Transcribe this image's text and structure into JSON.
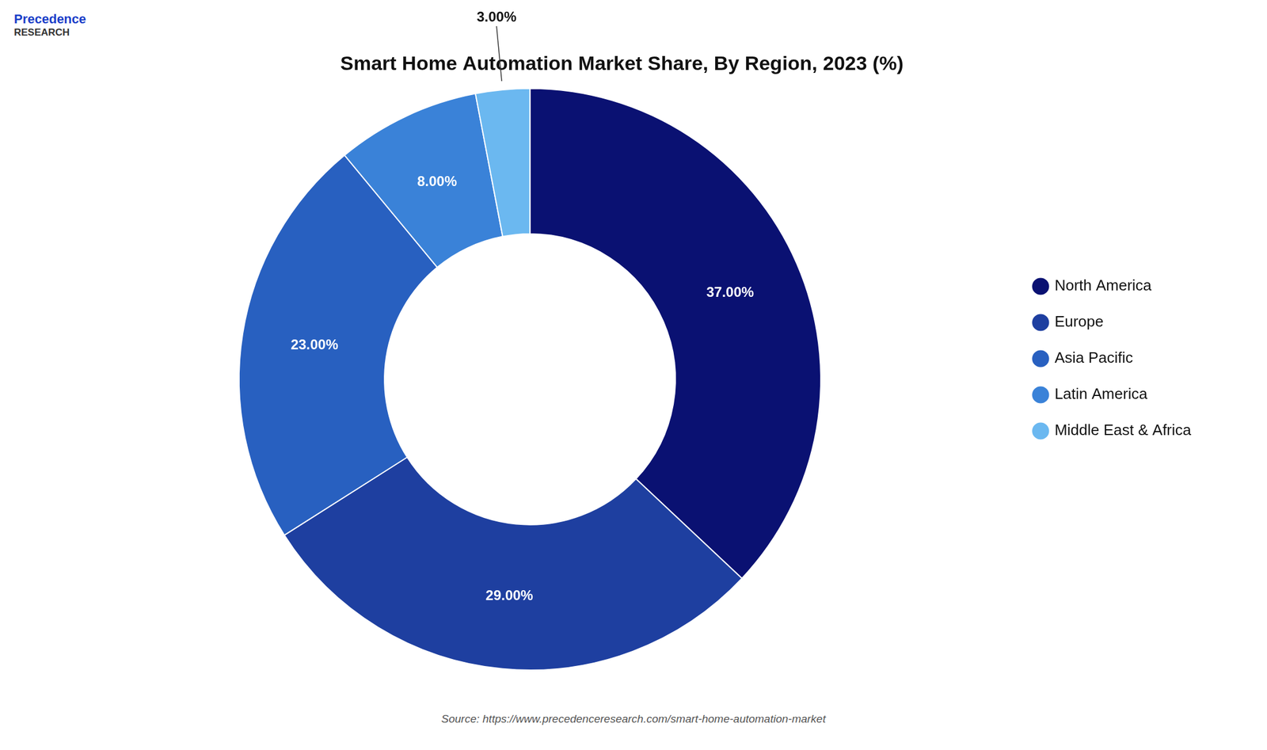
{
  "chart_data": {
    "type": "doughnut",
    "title": "Smart Home Automation Market Share, By Region, 2023 (%)",
    "categories": [
      "North America",
      "Europe",
      "Asia Pacific",
      "Latin America",
      "Middle East & Africa"
    ],
    "values": [
      37.0,
      29.0,
      23.0,
      8.0,
      3.0
    ],
    "value_labels": [
      "37.00%",
      "29.00%",
      "23.00%",
      "8.00%",
      "3.00%"
    ],
    "colors": [
      "#0a1172",
      "#1e3fa0",
      "#2860c0",
      "#3a82d8",
      "#6bb8f0"
    ],
    "data_labels": true,
    "legend": "right",
    "annotations": [
      "Precedence",
      "RESEARCH",
      "Source: https://www.precedenceresearch.com/smart-home-automation-market"
    ]
  }
}
